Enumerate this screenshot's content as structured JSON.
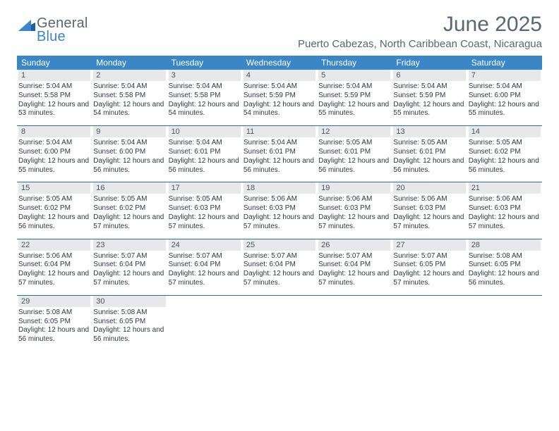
{
  "logo": {
    "general": "General",
    "blue": "Blue"
  },
  "title": "June 2025",
  "location": "Puerto Cabezas, North Caribbean Coast, Nicaragua",
  "colors": {
    "header_bg": "#3b86c7",
    "header_text": "#ffffff",
    "daynum_bg": "#e7e8ea",
    "text": "#30383f",
    "muted": "#5a6770",
    "rule": "#2f6fa8"
  },
  "weekdays": [
    "Sunday",
    "Monday",
    "Tuesday",
    "Wednesday",
    "Thursday",
    "Friday",
    "Saturday"
  ],
  "grid_rows": 5,
  "grid_cols": 7,
  "days": [
    {
      "n": 1,
      "sunrise": "5:04 AM",
      "sunset": "5:58 PM",
      "daylight": "12 hours and 53 minutes."
    },
    {
      "n": 2,
      "sunrise": "5:04 AM",
      "sunset": "5:58 PM",
      "daylight": "12 hours and 54 minutes."
    },
    {
      "n": 3,
      "sunrise": "5:04 AM",
      "sunset": "5:58 PM",
      "daylight": "12 hours and 54 minutes."
    },
    {
      "n": 4,
      "sunrise": "5:04 AM",
      "sunset": "5:59 PM",
      "daylight": "12 hours and 54 minutes."
    },
    {
      "n": 5,
      "sunrise": "5:04 AM",
      "sunset": "5:59 PM",
      "daylight": "12 hours and 55 minutes."
    },
    {
      "n": 6,
      "sunrise": "5:04 AM",
      "sunset": "5:59 PM",
      "daylight": "12 hours and 55 minutes."
    },
    {
      "n": 7,
      "sunrise": "5:04 AM",
      "sunset": "6:00 PM",
      "daylight": "12 hours and 55 minutes."
    },
    {
      "n": 8,
      "sunrise": "5:04 AM",
      "sunset": "6:00 PM",
      "daylight": "12 hours and 55 minutes."
    },
    {
      "n": 9,
      "sunrise": "5:04 AM",
      "sunset": "6:00 PM",
      "daylight": "12 hours and 56 minutes."
    },
    {
      "n": 10,
      "sunrise": "5:04 AM",
      "sunset": "6:01 PM",
      "daylight": "12 hours and 56 minutes."
    },
    {
      "n": 11,
      "sunrise": "5:04 AM",
      "sunset": "6:01 PM",
      "daylight": "12 hours and 56 minutes."
    },
    {
      "n": 12,
      "sunrise": "5:05 AM",
      "sunset": "6:01 PM",
      "daylight": "12 hours and 56 minutes."
    },
    {
      "n": 13,
      "sunrise": "5:05 AM",
      "sunset": "6:01 PM",
      "daylight": "12 hours and 56 minutes."
    },
    {
      "n": 14,
      "sunrise": "5:05 AM",
      "sunset": "6:02 PM",
      "daylight": "12 hours and 56 minutes."
    },
    {
      "n": 15,
      "sunrise": "5:05 AM",
      "sunset": "6:02 PM",
      "daylight": "12 hours and 56 minutes."
    },
    {
      "n": 16,
      "sunrise": "5:05 AM",
      "sunset": "6:02 PM",
      "daylight": "12 hours and 57 minutes."
    },
    {
      "n": 17,
      "sunrise": "5:05 AM",
      "sunset": "6:03 PM",
      "daylight": "12 hours and 57 minutes."
    },
    {
      "n": 18,
      "sunrise": "5:06 AM",
      "sunset": "6:03 PM",
      "daylight": "12 hours and 57 minutes."
    },
    {
      "n": 19,
      "sunrise": "5:06 AM",
      "sunset": "6:03 PM",
      "daylight": "12 hours and 57 minutes."
    },
    {
      "n": 20,
      "sunrise": "5:06 AM",
      "sunset": "6:03 PM",
      "daylight": "12 hours and 57 minutes."
    },
    {
      "n": 21,
      "sunrise": "5:06 AM",
      "sunset": "6:03 PM",
      "daylight": "12 hours and 57 minutes."
    },
    {
      "n": 22,
      "sunrise": "5:06 AM",
      "sunset": "6:04 PM",
      "daylight": "12 hours and 57 minutes."
    },
    {
      "n": 23,
      "sunrise": "5:07 AM",
      "sunset": "6:04 PM",
      "daylight": "12 hours and 57 minutes."
    },
    {
      "n": 24,
      "sunrise": "5:07 AM",
      "sunset": "6:04 PM",
      "daylight": "12 hours and 57 minutes."
    },
    {
      "n": 25,
      "sunrise": "5:07 AM",
      "sunset": "6:04 PM",
      "daylight": "12 hours and 57 minutes."
    },
    {
      "n": 26,
      "sunrise": "5:07 AM",
      "sunset": "6:04 PM",
      "daylight": "12 hours and 57 minutes."
    },
    {
      "n": 27,
      "sunrise": "5:07 AM",
      "sunset": "6:05 PM",
      "daylight": "12 hours and 57 minutes."
    },
    {
      "n": 28,
      "sunrise": "5:08 AM",
      "sunset": "6:05 PM",
      "daylight": "12 hours and 56 minutes."
    },
    {
      "n": 29,
      "sunrise": "5:08 AM",
      "sunset": "6:05 PM",
      "daylight": "12 hours and 56 minutes."
    },
    {
      "n": 30,
      "sunrise": "5:08 AM",
      "sunset": "6:05 PM",
      "daylight": "12 hours and 56 minutes."
    }
  ],
  "labels": {
    "sunrise": "Sunrise:",
    "sunset": "Sunset:",
    "daylight": "Daylight:"
  }
}
